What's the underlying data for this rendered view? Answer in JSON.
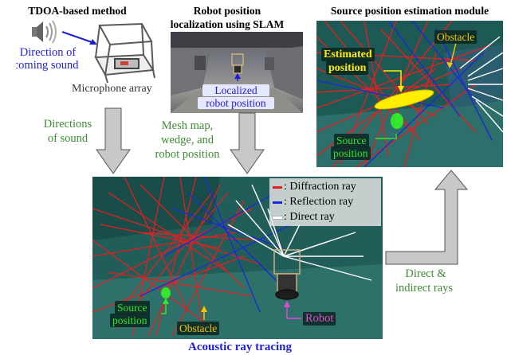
{
  "headings": {
    "tdoa": "TDOA-based method",
    "slam_line1": "Robot position",
    "slam_line2": "localization using SLAM",
    "source_module": "Source position estimation module",
    "ray_tracing": "Acoustic ray tracing"
  },
  "tdoa_panel": {
    "direction_line1": "Direction of",
    "direction_line2": "incoming sound",
    "mic_array": "Microphone array"
  },
  "slam_panel": {
    "localized_line1": "Localized",
    "localized_line2": "robot position"
  },
  "arrow_labels": {
    "directions_line1": "Directions",
    "directions_line2": "of sound",
    "mesh_line1": "Mesh map,",
    "mesh_line2": "wedge, and",
    "mesh_line3": "robot position",
    "rays_line1": "Direct &",
    "rays_line2": "indirect rays"
  },
  "source_panel": {
    "obstacle": "Obstacle",
    "estimated_line1": "Estimated",
    "estimated_line2": "position",
    "source_line1": "Source",
    "source_line2": "position"
  },
  "ray_panel": {
    "legend": [
      {
        "label": ": Diffraction ray",
        "color": "#e02020"
      },
      {
        "label": ": Reflection ray",
        "color": "#1a2bd8"
      },
      {
        "label": ": Direct ray",
        "color": "#ffffff"
      }
    ],
    "source_line1": "Source",
    "source_line2": "position",
    "obstacle": "Obstacle",
    "robot": "Robot"
  },
  "colors": {
    "label_green": "#3f8a35",
    "label_blue": "#1f1fd2",
    "arrow_gray": "#c8c8c8",
    "robot_pink": "#e14bd0",
    "obstacle_yellow": "#f5c400",
    "estimated_yellow": "#ffee00",
    "source_green": "#31e62c"
  }
}
